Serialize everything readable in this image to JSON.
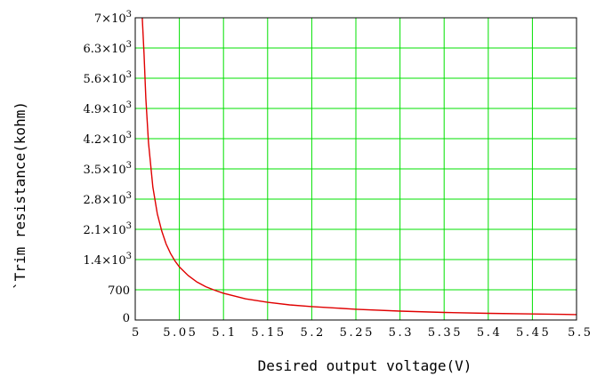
{
  "chart_data": {
    "type": "line",
    "xlabel": "Desired output voltage(V)",
    "ylabel": "`Trim resistance(kohm)",
    "xlim": [
      5,
      5.5
    ],
    "ylim": [
      0,
      7000
    ],
    "grid": true,
    "x_ticks": [
      {
        "value": 5,
        "label": "5"
      },
      {
        "value": 5.05,
        "label": "5.05"
      },
      {
        "value": 5.1,
        "label": "5.1"
      },
      {
        "value": 5.15,
        "label": "5.15"
      },
      {
        "value": 5.2,
        "label": "5.2"
      },
      {
        "value": 5.25,
        "label": "5.25"
      },
      {
        "value": 5.3,
        "label": "5.3"
      },
      {
        "value": 5.35,
        "label": "5.35"
      },
      {
        "value": 5.4,
        "label": "5.4"
      },
      {
        "value": 5.45,
        "label": "5.45"
      },
      {
        "value": 5.5,
        "label": "5.5"
      }
    ],
    "y_ticks": [
      {
        "value": 0,
        "label": "0",
        "exp": ""
      },
      {
        "value": 700,
        "label": "700",
        "exp": ""
      },
      {
        "value": 1400,
        "label": "1.4×10",
        "exp": "3"
      },
      {
        "value": 2100,
        "label": "2.1×10",
        "exp": "3"
      },
      {
        "value": 2800,
        "label": "2.8×10",
        "exp": "3"
      },
      {
        "value": 3500,
        "label": "3.5×10",
        "exp": "3"
      },
      {
        "value": 4200,
        "label": "4.2×10",
        "exp": "3"
      },
      {
        "value": 4900,
        "label": "4.9×10",
        "exp": "3"
      },
      {
        "value": 5600,
        "label": "5.6×10",
        "exp": "3"
      },
      {
        "value": 6300,
        "label": "6.3×10",
        "exp": "3"
      },
      {
        "value": 7000,
        "label": "7×10",
        "exp": "3"
      }
    ],
    "series": [
      {
        "color": "#e00000",
        "x": [
          5.008,
          5.01,
          5.012,
          5.015,
          5.02,
          5.025,
          5.03,
          5.035,
          5.04,
          5.045,
          5.05,
          5.06,
          5.07,
          5.08,
          5.09,
          5.1,
          5.125,
          5.15,
          5.175,
          5.2,
          5.25,
          5.3,
          5.35,
          5.4,
          5.45,
          5.5
        ],
        "y": [
          7000,
          6160,
          5140,
          4110,
          3080,
          2460,
          2060,
          1760,
          1540,
          1370,
          1230,
          1030,
          880,
          770,
          690,
          620,
          490,
          410,
          350,
          310,
          250,
          205,
          175,
          155,
          140,
          125
        ]
      }
    ],
    "colors": {
      "grid": "#00e000",
      "line": "#e00000",
      "frame": "#000000"
    }
  }
}
